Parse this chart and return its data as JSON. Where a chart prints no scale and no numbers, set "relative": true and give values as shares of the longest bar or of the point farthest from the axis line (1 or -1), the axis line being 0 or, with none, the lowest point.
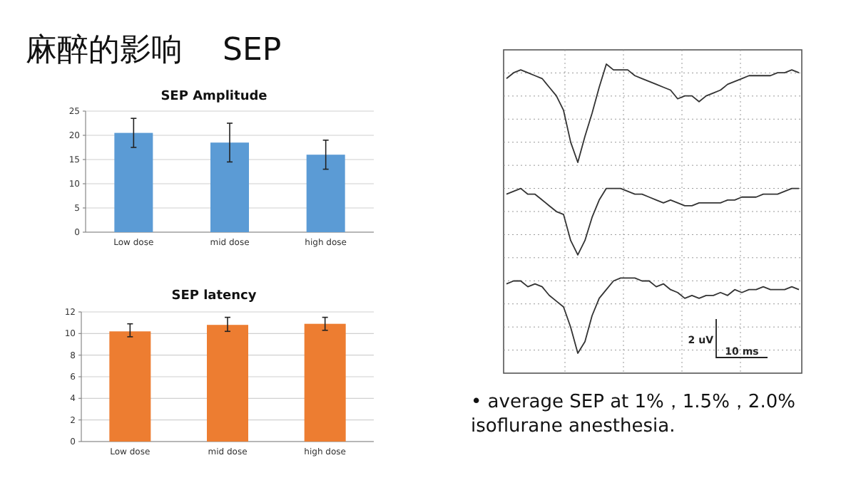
{
  "chart_data": [
    {
      "type": "other",
      "title": "麻醉的影响    SEP"
    },
    {
      "type": "bar",
      "title": "SEP Amplitude",
      "categories": [
        "Low dose",
        "mid dose",
        "high dose"
      ],
      "values": [
        20.5,
        18.5,
        16
      ],
      "color": "#5b9bd5",
      "errors": [
        [
          17.5,
          23.5
        ],
        [
          14.5,
          22.5
        ],
        [
          13,
          19
        ]
      ],
      "ylim": [
        0,
        25
      ],
      "yticks": [
        0,
        5,
        10,
        15,
        20,
        25
      ],
      "grid": "y"
    },
    {
      "type": "bar",
      "title": "SEP latency",
      "categories": [
        "Low dose",
        "mid dose",
        "high dose"
      ],
      "values": [
        10.2,
        10.8,
        10.9
      ],
      "color": "#ed7d31",
      "errors": [
        [
          9.7,
          10.9
        ],
        [
          10.2,
          11.5
        ],
        [
          10.3,
          11.5
        ]
      ],
      "ylim": [
        0,
        12
      ],
      "yticks": [
        0,
        2,
        4,
        6,
        8,
        10,
        12
      ],
      "grid": "y"
    },
    {
      "type": "line",
      "relative": true,
      "grid": true,
      "categories": [
        null,
        null,
        null,
        null,
        null,
        null,
        null,
        null,
        null,
        null,
        null,
        null,
        null,
        null,
        null,
        null,
        null,
        null,
        null,
        null,
        null,
        null,
        null,
        null,
        null,
        null,
        null,
        null,
        null,
        null,
        null,
        null,
        null,
        null,
        null,
        null,
        null,
        null,
        null,
        null,
        null,
        null
      ],
      "series": [
        {
          "color": "#333333",
          "values": [
            0.95,
            0.97,
            0.98,
            0.97,
            0.96,
            0.95,
            0.92,
            0.89,
            0.84,
            0.73,
            0.66,
            0.75,
            0.83,
            0.92,
            1.0,
            0.98,
            0.98,
            0.98,
            0.96,
            0.95,
            0.94,
            0.93,
            0.92,
            0.91,
            0.88,
            0.89,
            0.89,
            0.87,
            0.89,
            0.9,
            0.91,
            0.93,
            0.94,
            0.95,
            0.96,
            0.96,
            0.96,
            0.96,
            0.97,
            0.97,
            0.98,
            0.97
          ]
        },
        {
          "color": "#333333",
          "values": [
            0.55,
            0.56,
            0.57,
            0.55,
            0.55,
            0.53,
            0.51,
            0.49,
            0.48,
            0.39,
            0.34,
            0.39,
            0.47,
            0.53,
            0.57,
            0.57,
            0.57,
            0.56,
            0.55,
            0.55,
            0.54,
            0.53,
            0.52,
            0.53,
            0.52,
            0.51,
            0.51,
            0.52,
            0.52,
            0.52,
            0.52,
            0.53,
            0.53,
            0.54,
            0.54,
            0.54,
            0.55,
            0.55,
            0.55,
            0.56,
            0.57,
            0.57
          ]
        },
        {
          "color": "#333333",
          "values": [
            0.24,
            0.25,
            0.25,
            0.23,
            0.24,
            0.23,
            0.2,
            0.18,
            0.16,
            0.09,
            0,
            0.04,
            0.13,
            0.19,
            0.22,
            0.25,
            0.26,
            0.26,
            0.26,
            0.25,
            0.25,
            0.23,
            0.24,
            0.22,
            0.21,
            0.19,
            0.2,
            0.19,
            0.2,
            0.2,
            0.21,
            0.2,
            0.22,
            0.21,
            0.22,
            0.22,
            0.23,
            0.22,
            0.22,
            0.22,
            0.23,
            0.22
          ]
        }
      ],
      "annotations": [
        "2 uV",
        "10 ms",
        "• average SEP at 1%，1.5%，2.0% isoflurane anesthesia."
      ]
    }
  ]
}
